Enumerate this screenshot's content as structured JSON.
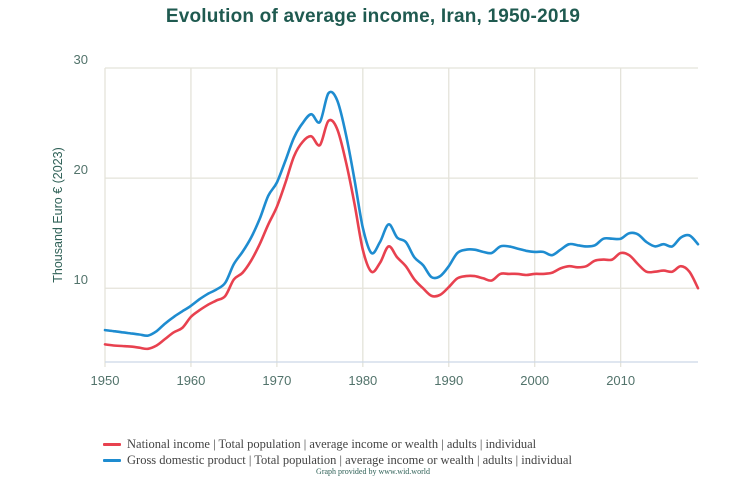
{
  "chart_data": {
    "type": "line",
    "title": "Evolution of average income, Iran, 1950-2019",
    "xlabel": "",
    "ylabel": "Thousand Euro € (2023)",
    "xlim": [
      1950,
      2019
    ],
    "ylim": [
      3.3,
      30
    ],
    "xticks": [
      1950,
      1960,
      1970,
      1980,
      1990,
      2000,
      2010
    ],
    "yticks": [
      10,
      20,
      30
    ],
    "grid": true,
    "legend_position": "bottom-left",
    "x": [
      1950,
      1951,
      1952,
      1953,
      1954,
      1955,
      1956,
      1957,
      1958,
      1959,
      1960,
      1961,
      1962,
      1963,
      1964,
      1965,
      1966,
      1967,
      1968,
      1969,
      1970,
      1971,
      1972,
      1973,
      1974,
      1975,
      1976,
      1977,
      1978,
      1979,
      1980,
      1981,
      1982,
      1983,
      1984,
      1985,
      1986,
      1987,
      1988,
      1989,
      1990,
      1991,
      1992,
      1993,
      1994,
      1995,
      1996,
      1997,
      1998,
      1999,
      2000,
      2001,
      2002,
      2003,
      2004,
      2005,
      2006,
      2007,
      2008,
      2009,
      2010,
      2011,
      2012,
      2013,
      2014,
      2015,
      2016,
      2017,
      2018,
      2019
    ],
    "series": [
      {
        "name": "National income | Total population | average income or wealth | adults | individual",
        "color": "#e8414f",
        "values": [
          4.9,
          4.8,
          4.75,
          4.7,
          4.6,
          4.5,
          4.8,
          5.4,
          6.0,
          6.4,
          7.4,
          8.0,
          8.5,
          8.9,
          9.3,
          10.8,
          11.4,
          12.5,
          14.0,
          15.8,
          17.4,
          19.6,
          22.0,
          23.3,
          23.8,
          23.0,
          25.2,
          24.5,
          21.6,
          17.8,
          13.5,
          11.5,
          12.3,
          13.8,
          12.8,
          12.0,
          10.8,
          10.0,
          9.3,
          9.4,
          10.1,
          10.9,
          11.1,
          11.1,
          10.9,
          10.7,
          11.3,
          11.3,
          11.3,
          11.2,
          11.3,
          11.3,
          11.4,
          11.8,
          12.0,
          11.9,
          12.0,
          12.5,
          12.6,
          12.6,
          13.2,
          13.0,
          12.2,
          11.5,
          11.5,
          11.6,
          11.5,
          12.0,
          11.5,
          10.0
        ]
      },
      {
        "name": "Gross domestic product | Total population | average income or wealth | adults | individual",
        "color": "#1e8cd0",
        "values": [
          6.2,
          6.1,
          6.0,
          5.9,
          5.8,
          5.7,
          6.1,
          6.8,
          7.4,
          7.9,
          8.4,
          9.0,
          9.5,
          9.9,
          10.5,
          12.2,
          13.3,
          14.6,
          16.3,
          18.4,
          19.6,
          21.6,
          23.7,
          25.0,
          25.8,
          25.1,
          27.7,
          27.1,
          24.1,
          20.0,
          15.5,
          13.2,
          14.2,
          15.8,
          14.6,
          14.2,
          12.8,
          12.1,
          11.0,
          11.1,
          12.0,
          13.2,
          13.5,
          13.5,
          13.3,
          13.2,
          13.8,
          13.8,
          13.6,
          13.4,
          13.3,
          13.3,
          13.0,
          13.5,
          14.0,
          13.9,
          13.8,
          13.9,
          14.5,
          14.5,
          14.5,
          15.0,
          14.9,
          14.2,
          13.8,
          14.0,
          13.8,
          14.6,
          14.8,
          14.0
        ]
      }
    ],
    "credit": "Graph provided by www.wid.world"
  }
}
